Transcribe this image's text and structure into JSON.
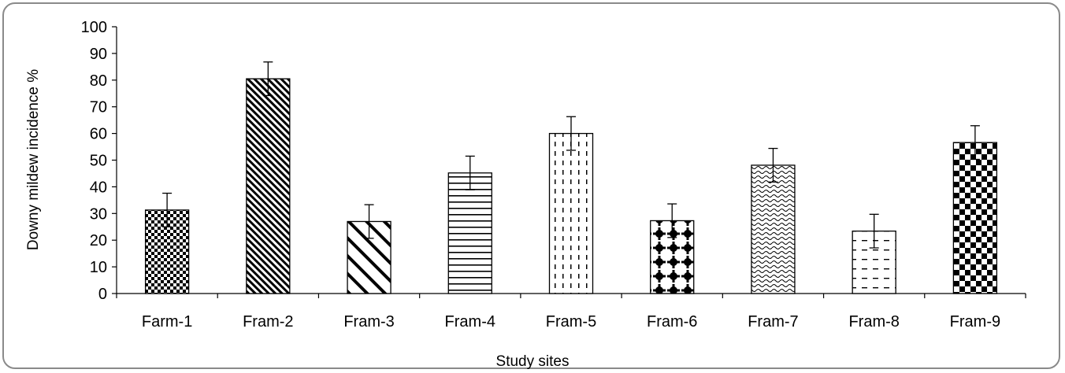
{
  "chart_data": {
    "type": "bar",
    "title": "",
    "xlabel": "Study sites",
    "ylabel": "Downy mildew incidence %",
    "ylim": [
      0,
      100
    ],
    "ytick_step": 10,
    "yticks": [
      "0",
      "10",
      "20",
      "30",
      "40",
      "50",
      "60",
      "70",
      "80",
      "90",
      "100"
    ],
    "grid": false,
    "legend": "none",
    "categories": [
      "Farm-1",
      "Fram-2",
      "Fram-3",
      "Fram-4",
      "Fram-5",
      "Fram-6",
      "Fram-7",
      "Fram-8",
      "Fram-9"
    ],
    "values": [
      31.3,
      80.5,
      27.0,
      45.2,
      60.0,
      27.3,
      48.1,
      23.4,
      56.6
    ],
    "error": [
      6.3,
      6.3,
      6.3,
      6.3,
      6.3,
      6.3,
      6.3,
      6.3,
      6.3
    ],
    "fill_patterns": [
      "checker-fine",
      "diagonal-dense",
      "diagonal-wide",
      "horizontal-lines",
      "vertical-dashes",
      "plus-dots",
      "wave",
      "dashes-sparse",
      "checker-large"
    ],
    "colors": {
      "bar_stroke": "#000000",
      "pattern": "#000000",
      "frame": "#8a8a8a"
    }
  }
}
